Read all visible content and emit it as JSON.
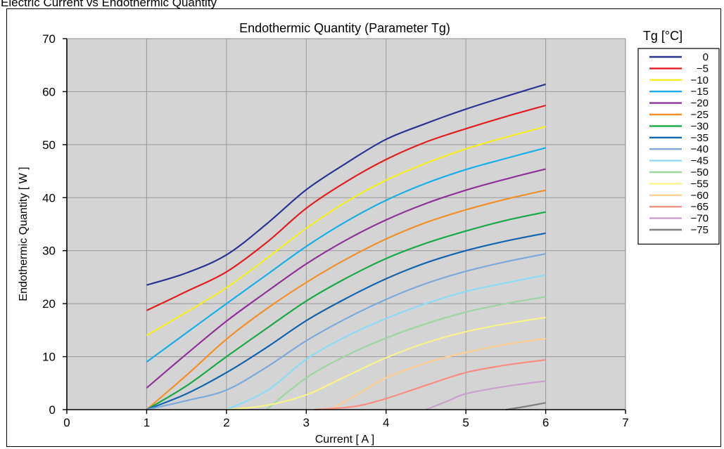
{
  "page": {
    "title": "Electric Current vs Endothermic Quantity"
  },
  "chart_data": {
    "type": "line",
    "title": "Endothermic Quantity (Parameter Tg)",
    "xlabel": "Current [ A ]",
    "ylabel": "Endothermic Quantity [ W ]",
    "xlim": [
      0,
      7
    ],
    "ylim": [
      0,
      70
    ],
    "xticks": [
      "0",
      "1",
      "2",
      "3",
      "4",
      "5",
      "6",
      "7"
    ],
    "yticks": [
      "0",
      "10",
      "20",
      "30",
      "40",
      "50",
      "60",
      "70"
    ],
    "grid": true,
    "background": "#d4d4d4",
    "legend_title": "Tg [°C]",
    "legend_position": "right",
    "series": [
      {
        "name": "0",
        "color": "#2b3590",
        "points": [
          [
            1,
            23.5
          ],
          [
            1.5,
            25.8
          ],
          [
            2,
            29.2
          ],
          [
            2.5,
            35
          ],
          [
            3,
            41.5
          ],
          [
            3.5,
            46.5
          ],
          [
            4,
            51
          ],
          [
            4.5,
            54
          ],
          [
            5,
            56.7
          ],
          [
            5.5,
            59.1
          ],
          [
            6,
            61.4
          ]
        ]
      },
      {
        "name": "−5",
        "color": "#e21d24",
        "points": [
          [
            1,
            18.7
          ],
          [
            1.5,
            22.3
          ],
          [
            2,
            26
          ],
          [
            2.5,
            31.5
          ],
          [
            3,
            38
          ],
          [
            3.5,
            43
          ],
          [
            4,
            47.2
          ],
          [
            4.5,
            50.5
          ],
          [
            5,
            53
          ],
          [
            5.5,
            55.3
          ],
          [
            6,
            57.4
          ]
        ]
      },
      {
        "name": "−10",
        "color": "#f4ee22",
        "points": [
          [
            1,
            14
          ],
          [
            1.5,
            18.4
          ],
          [
            2,
            23
          ],
          [
            2.5,
            28.5
          ],
          [
            3,
            34.2
          ],
          [
            3.5,
            39.2
          ],
          [
            4,
            43.3
          ],
          [
            4.5,
            46.5
          ],
          [
            5,
            49.2
          ],
          [
            5.5,
            51.4
          ],
          [
            6,
            53.4
          ]
        ]
      },
      {
        "name": "−15",
        "color": "#17afe6",
        "points": [
          [
            1,
            9
          ],
          [
            1.5,
            14.5
          ],
          [
            2,
            20
          ],
          [
            2.5,
            25.4
          ],
          [
            3,
            30.8
          ],
          [
            3.5,
            35.5
          ],
          [
            4,
            39.5
          ],
          [
            4.5,
            42.7
          ],
          [
            5,
            45.3
          ],
          [
            5.5,
            47.4
          ],
          [
            6,
            49.4
          ]
        ]
      },
      {
        "name": "−20",
        "color": "#8d3596",
        "points": [
          [
            1,
            4.1
          ],
          [
            1.5,
            10.5
          ],
          [
            2,
            16.7
          ],
          [
            2.5,
            22.2
          ],
          [
            3,
            27.5
          ],
          [
            3.5,
            32
          ],
          [
            4,
            35.8
          ],
          [
            4.5,
            38.9
          ],
          [
            5,
            41.4
          ],
          [
            5.5,
            43.5
          ],
          [
            6,
            45.4
          ]
        ]
      },
      {
        "name": "−25",
        "color": "#f1912c",
        "points": [
          [
            1,
            0
          ],
          [
            1.5,
            6.5
          ],
          [
            2,
            13.3
          ],
          [
            2.5,
            19
          ],
          [
            3,
            24
          ],
          [
            3.5,
            28.4
          ],
          [
            4,
            32.2
          ],
          [
            4.5,
            35.3
          ],
          [
            5,
            37.7
          ],
          [
            5.5,
            39.7
          ],
          [
            6,
            41.4
          ]
        ]
      },
      {
        "name": "−30",
        "color": "#1ba84a",
        "points": [
          [
            1,
            0
          ],
          [
            1.5,
            4.5
          ],
          [
            2,
            10
          ],
          [
            2.5,
            15.3
          ],
          [
            3,
            20.5
          ],
          [
            3.5,
            24.8
          ],
          [
            4,
            28.5
          ],
          [
            4.5,
            31.4
          ],
          [
            5,
            33.7
          ],
          [
            5.5,
            35.7
          ],
          [
            6,
            37.3
          ]
        ]
      },
      {
        "name": "−35",
        "color": "#1464ad",
        "points": [
          [
            1,
            0
          ],
          [
            1.5,
            3
          ],
          [
            2,
            7
          ],
          [
            2.5,
            11.7
          ],
          [
            3,
            16.8
          ],
          [
            3.5,
            21
          ],
          [
            4,
            24.7
          ],
          [
            4.5,
            27.7
          ],
          [
            5,
            30
          ],
          [
            5.5,
            31.8
          ],
          [
            6,
            33.3
          ]
        ]
      },
      {
        "name": "−40",
        "color": "#7fa9d8",
        "points": [
          [
            1,
            0
          ],
          [
            1.5,
            1.7
          ],
          [
            2,
            3.7
          ],
          [
            2.5,
            8
          ],
          [
            3,
            13
          ],
          [
            3.5,
            17.2
          ],
          [
            4,
            20.8
          ],
          [
            4.5,
            23.8
          ],
          [
            5,
            26.1
          ],
          [
            5.5,
            27.9
          ],
          [
            6,
            29.4
          ]
        ]
      },
      {
        "name": "−45",
        "color": "#8fdaf3",
        "points": [
          [
            2,
            0
          ],
          [
            2.5,
            3.5
          ],
          [
            3,
            9.5
          ],
          [
            3.5,
            13.8
          ],
          [
            4,
            17.2
          ],
          [
            4.5,
            20
          ],
          [
            5,
            22.3
          ],
          [
            5.5,
            23.9
          ],
          [
            6,
            25.4
          ]
        ]
      },
      {
        "name": "−50",
        "color": "#9fd5a2",
        "points": [
          [
            2.5,
            0
          ],
          [
            3,
            6
          ],
          [
            3.5,
            10.2
          ],
          [
            4,
            13.5
          ],
          [
            4.5,
            16.2
          ],
          [
            5,
            18.4
          ],
          [
            5.5,
            20
          ],
          [
            6,
            21.3
          ]
        ]
      },
      {
        "name": "−55",
        "color": "#f7f28a",
        "points": [
          [
            2,
            0
          ],
          [
            2.5,
            0.8
          ],
          [
            3,
            2.8
          ],
          [
            3.5,
            6.3
          ],
          [
            4,
            9.8
          ],
          [
            4.5,
            12.6
          ],
          [
            5,
            14.7
          ],
          [
            5.5,
            16.2
          ],
          [
            6,
            17.4
          ]
        ]
      },
      {
        "name": "−60",
        "color": "#fbcf96",
        "points": [
          [
            3.3,
            0
          ],
          [
            3.6,
            2.5
          ],
          [
            4,
            6
          ],
          [
            4.5,
            8.8
          ],
          [
            5,
            10.8
          ],
          [
            5.5,
            12.3
          ],
          [
            6,
            13.4
          ]
        ]
      },
      {
        "name": "−65",
        "color": "#f39083",
        "points": [
          [
            3.1,
            0
          ],
          [
            3.6,
            0.6
          ],
          [
            4,
            2.1
          ],
          [
            4.5,
            4.6
          ],
          [
            5,
            7
          ],
          [
            5.5,
            8.4
          ],
          [
            6,
            9.4
          ]
        ]
      },
      {
        "name": "−70",
        "color": "#c9a2cc",
        "points": [
          [
            4.5,
            0
          ],
          [
            4.8,
            1.8
          ],
          [
            5,
            3
          ],
          [
            5.5,
            4.4
          ],
          [
            6,
            5.4
          ]
        ]
      },
      {
        "name": "−75",
        "color": "#7f7f7f",
        "points": [
          [
            5.5,
            0
          ],
          [
            5.75,
            0.6
          ],
          [
            6,
            1.3
          ]
        ]
      }
    ]
  }
}
